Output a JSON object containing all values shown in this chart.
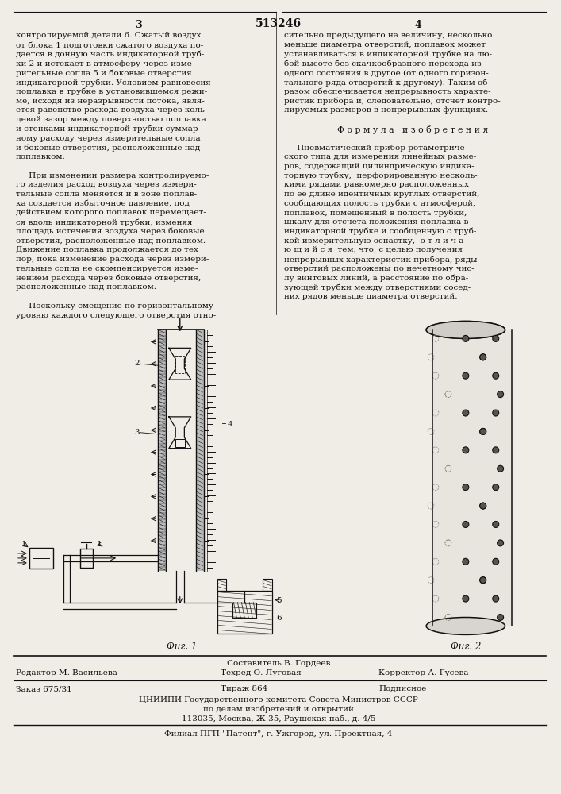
{
  "page_number_left": "3",
  "page_number_center": "513246",
  "page_number_right": "4",
  "left_column_text": [
    "контролируемой детали 6. Сжатый воздух",
    "от блока 1 подготовки сжатого воздуха по-",
    "дается в донную часть индикаторной труб-",
    "ки 2 и истекает в атмосферу через изме-",
    "рительные сопла 5 и боковые отверстия",
    "индикаторной трубки. Условием равновесия",
    "поплавка в трубке в установившемся режи-",
    "ме, исходя из неразрывности потока, явля-",
    "ется равенство расхода воздуха через коль-",
    "цевой зазор между поверхностью поплавка",
    "и стенками индикаторной трубки суммар-",
    "ному расходу через измерительные сопла",
    "и боковые отверстия, расположенные над",
    "поплавком.",
    "",
    "     При изменении размера контролируемо-",
    "го изделия расход воздуха через измери-",
    "тельные сопла меняется и в зоне поплав-",
    "ка создается избыточное давление, под",
    "действием которого поплавок перемещает-",
    "ся вдоль индикаторной трубки, изменяя",
    "площадь истечения воздуха через боковые",
    "отверстия, расположенные над поплавком.",
    "Движение поплавка продолжается до тех",
    "пор, пока изменение расхода через измери-",
    "тельные сопла не скомпенсируется изме-",
    "нением расхода через боковые отверстия,",
    "расположенные над поплавком.",
    "",
    "     Поскольку смещение по горизонтальному",
    "уровню каждого следующего отверстия отно-"
  ],
  "right_column_text_lines": [
    "сительно предыдущего на величину, несколько",
    "меньше диаметра отверстий, поплавок может",
    "устанавливаться в индикаторной трубке на лю-",
    "бой высоте без скачкообразного перехода из",
    "одного состояния в другое (от одного горизон-",
    "тального ряда отверстий к другому). Таким об-",
    "разом обеспечивается непрерывность характе-",
    "ристик прибора и, следовательно, отсчет контро-",
    "лируемых размеров в непрерывных функциях.",
    "",
    "Ф о р м у л а   и з о б р е т е н и я",
    "",
    "     Пневматический прибор ротаметриче-",
    "ского типа для измерения линейных разме-",
    "ров, содержащий цилиндрическую индика-",
    "торную трубку,  перфорированную несколь-",
    "кими рядами равномерно расположенных",
    "по ее длине идентичных круглых отверстий,",
    "сообщающих полость трубки с атмосферой,",
    "поплавок, помещенный в полость трубки,",
    "шкалу для отсчета положения поплавка в",
    "индикаторной трубке и сообщенную с труб-",
    "кой измерительную оснастку,  о т л и ч а-",
    "ю щ и й с я  тем, что, с целью получения",
    "непрерывных характеристик прибора, ряды",
    "отверстий расположены по нечетному чис-",
    "лу винтовых линий, а расстояние по обра-",
    "зующей трубки между отверстиями сосед-",
    "них рядов меньше диаметра отверстий."
  ],
  "formula_line_index": 10,
  "fig1_label": "Фиг. 1",
  "fig2_label": "Фиг. 2",
  "bottom_composer": "Составитель В. Гордеев",
  "bottom_editor": "Редактор М. Васильева",
  "bottom_techred": "Техред О. Луговая",
  "bottom_corrector": "Корректор А. Гусева",
  "bottom_order": "Заказ 675/31",
  "bottom_edition": "Тираж 864",
  "bottom_subscription": "Подписное",
  "bottom_org1": "ЦНИИПИ Государственного комитета Совета Министров СССР",
  "bottom_org2": "по делам изобретений и открытий",
  "bottom_org3": "113035, Москва, Ж-35, Раушская наб., д. 4/5",
  "bottom_filial": "Филиал ПГП \"Патент\", г. Ужгород, ул. Проектная, 4",
  "bg_color": "#f0ede6",
  "text_color": "#111111",
  "line_color": "#111111"
}
